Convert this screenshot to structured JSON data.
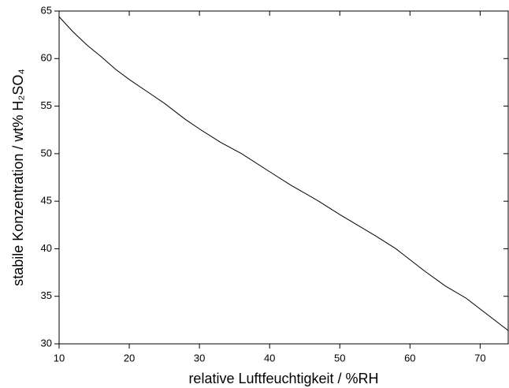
{
  "chart_data": {
    "type": "line",
    "x_label": "relative Luftfeuchtigkeit / %RH",
    "y_label": "stabile Konzentration / wt% H₂SO₄",
    "x": [
      10,
      12,
      14,
      16,
      18,
      20,
      22,
      25,
      28,
      30,
      33,
      36,
      40,
      43,
      47,
      50,
      55,
      58,
      62,
      65,
      68,
      71,
      74
    ],
    "series": [
      {
        "color": "#000000",
        "values": [
          64.4,
          62.8,
          61.4,
          60.2,
          58.9,
          57.8,
          56.8,
          55.3,
          53.6,
          52.6,
          51.2,
          50,
          48.1,
          46.7,
          45,
          43.6,
          41.4,
          40,
          37.7,
          36.1,
          34.8,
          33.1,
          31.4
        ]
      }
    ],
    "xlim": [
      10,
      74
    ],
    "ylim": [
      30,
      65
    ],
    "xticks": [
      10,
      20,
      30,
      40,
      50,
      60,
      70
    ],
    "yticks": [
      30,
      35,
      40,
      45,
      50,
      55,
      60,
      65
    ]
  }
}
